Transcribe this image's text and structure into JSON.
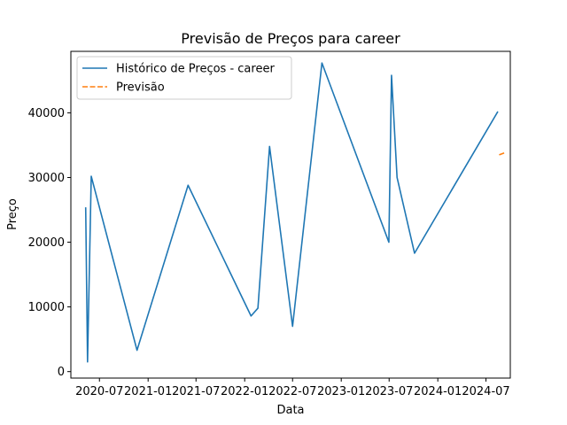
{
  "chart_data": {
    "type": "line",
    "title": "Previsão de Preços para career",
    "xlabel": "Data",
    "ylabel": "Preço",
    "x_range": [
      "2020-03-15",
      "2024-10-01"
    ],
    "ylim": [
      -1000,
      49500
    ],
    "x_ticks": [
      {
        "date": "2020-07-01",
        "label": "2020-07"
      },
      {
        "date": "2021-01-01",
        "label": "2021-01"
      },
      {
        "date": "2021-07-01",
        "label": "2021-07"
      },
      {
        "date": "2022-01-01",
        "label": "2022-01"
      },
      {
        "date": "2022-07-01",
        "label": "2022-07"
      },
      {
        "date": "2023-01-01",
        "label": "2023-01"
      },
      {
        "date": "2023-07-01",
        "label": "2023-07"
      },
      {
        "date": "2024-01-01",
        "label": "2024-01"
      },
      {
        "date": "2024-07-01",
        "label": "2024-07"
      }
    ],
    "y_ticks": [
      0,
      10000,
      20000,
      30000,
      40000
    ],
    "legend_position": "upper-left",
    "grid": false,
    "series": [
      {
        "name": "Histórico de Preços - career",
        "color": "#1f77b4",
        "style": "solid",
        "points": [
          {
            "x": "2020-05-10",
            "y": 25400
          },
          {
            "x": "2020-05-17",
            "y": 1500
          },
          {
            "x": "2020-05-31",
            "y": 30200
          },
          {
            "x": "2020-11-20",
            "y": 3300
          },
          {
            "x": "2021-06-01",
            "y": 28800
          },
          {
            "x": "2022-01-25",
            "y": 8600
          },
          {
            "x": "2022-02-20",
            "y": 9800
          },
          {
            "x": "2022-04-05",
            "y": 34800
          },
          {
            "x": "2022-07-01",
            "y": 7000
          },
          {
            "x": "2022-10-20",
            "y": 47700
          },
          {
            "x": "2023-06-30",
            "y": 20000
          },
          {
            "x": "2023-07-10",
            "y": 45800
          },
          {
            "x": "2023-07-31",
            "y": 30000
          },
          {
            "x": "2023-10-05",
            "y": 18300
          },
          {
            "x": "2024-08-15",
            "y": 40200
          }
        ]
      },
      {
        "name": "Previsão",
        "color": "#ff7f0e",
        "style": "dashed",
        "points": [
          {
            "x": "2024-08-20",
            "y": 33500
          },
          {
            "x": "2024-09-15",
            "y": 33900
          }
        ]
      }
    ]
  }
}
